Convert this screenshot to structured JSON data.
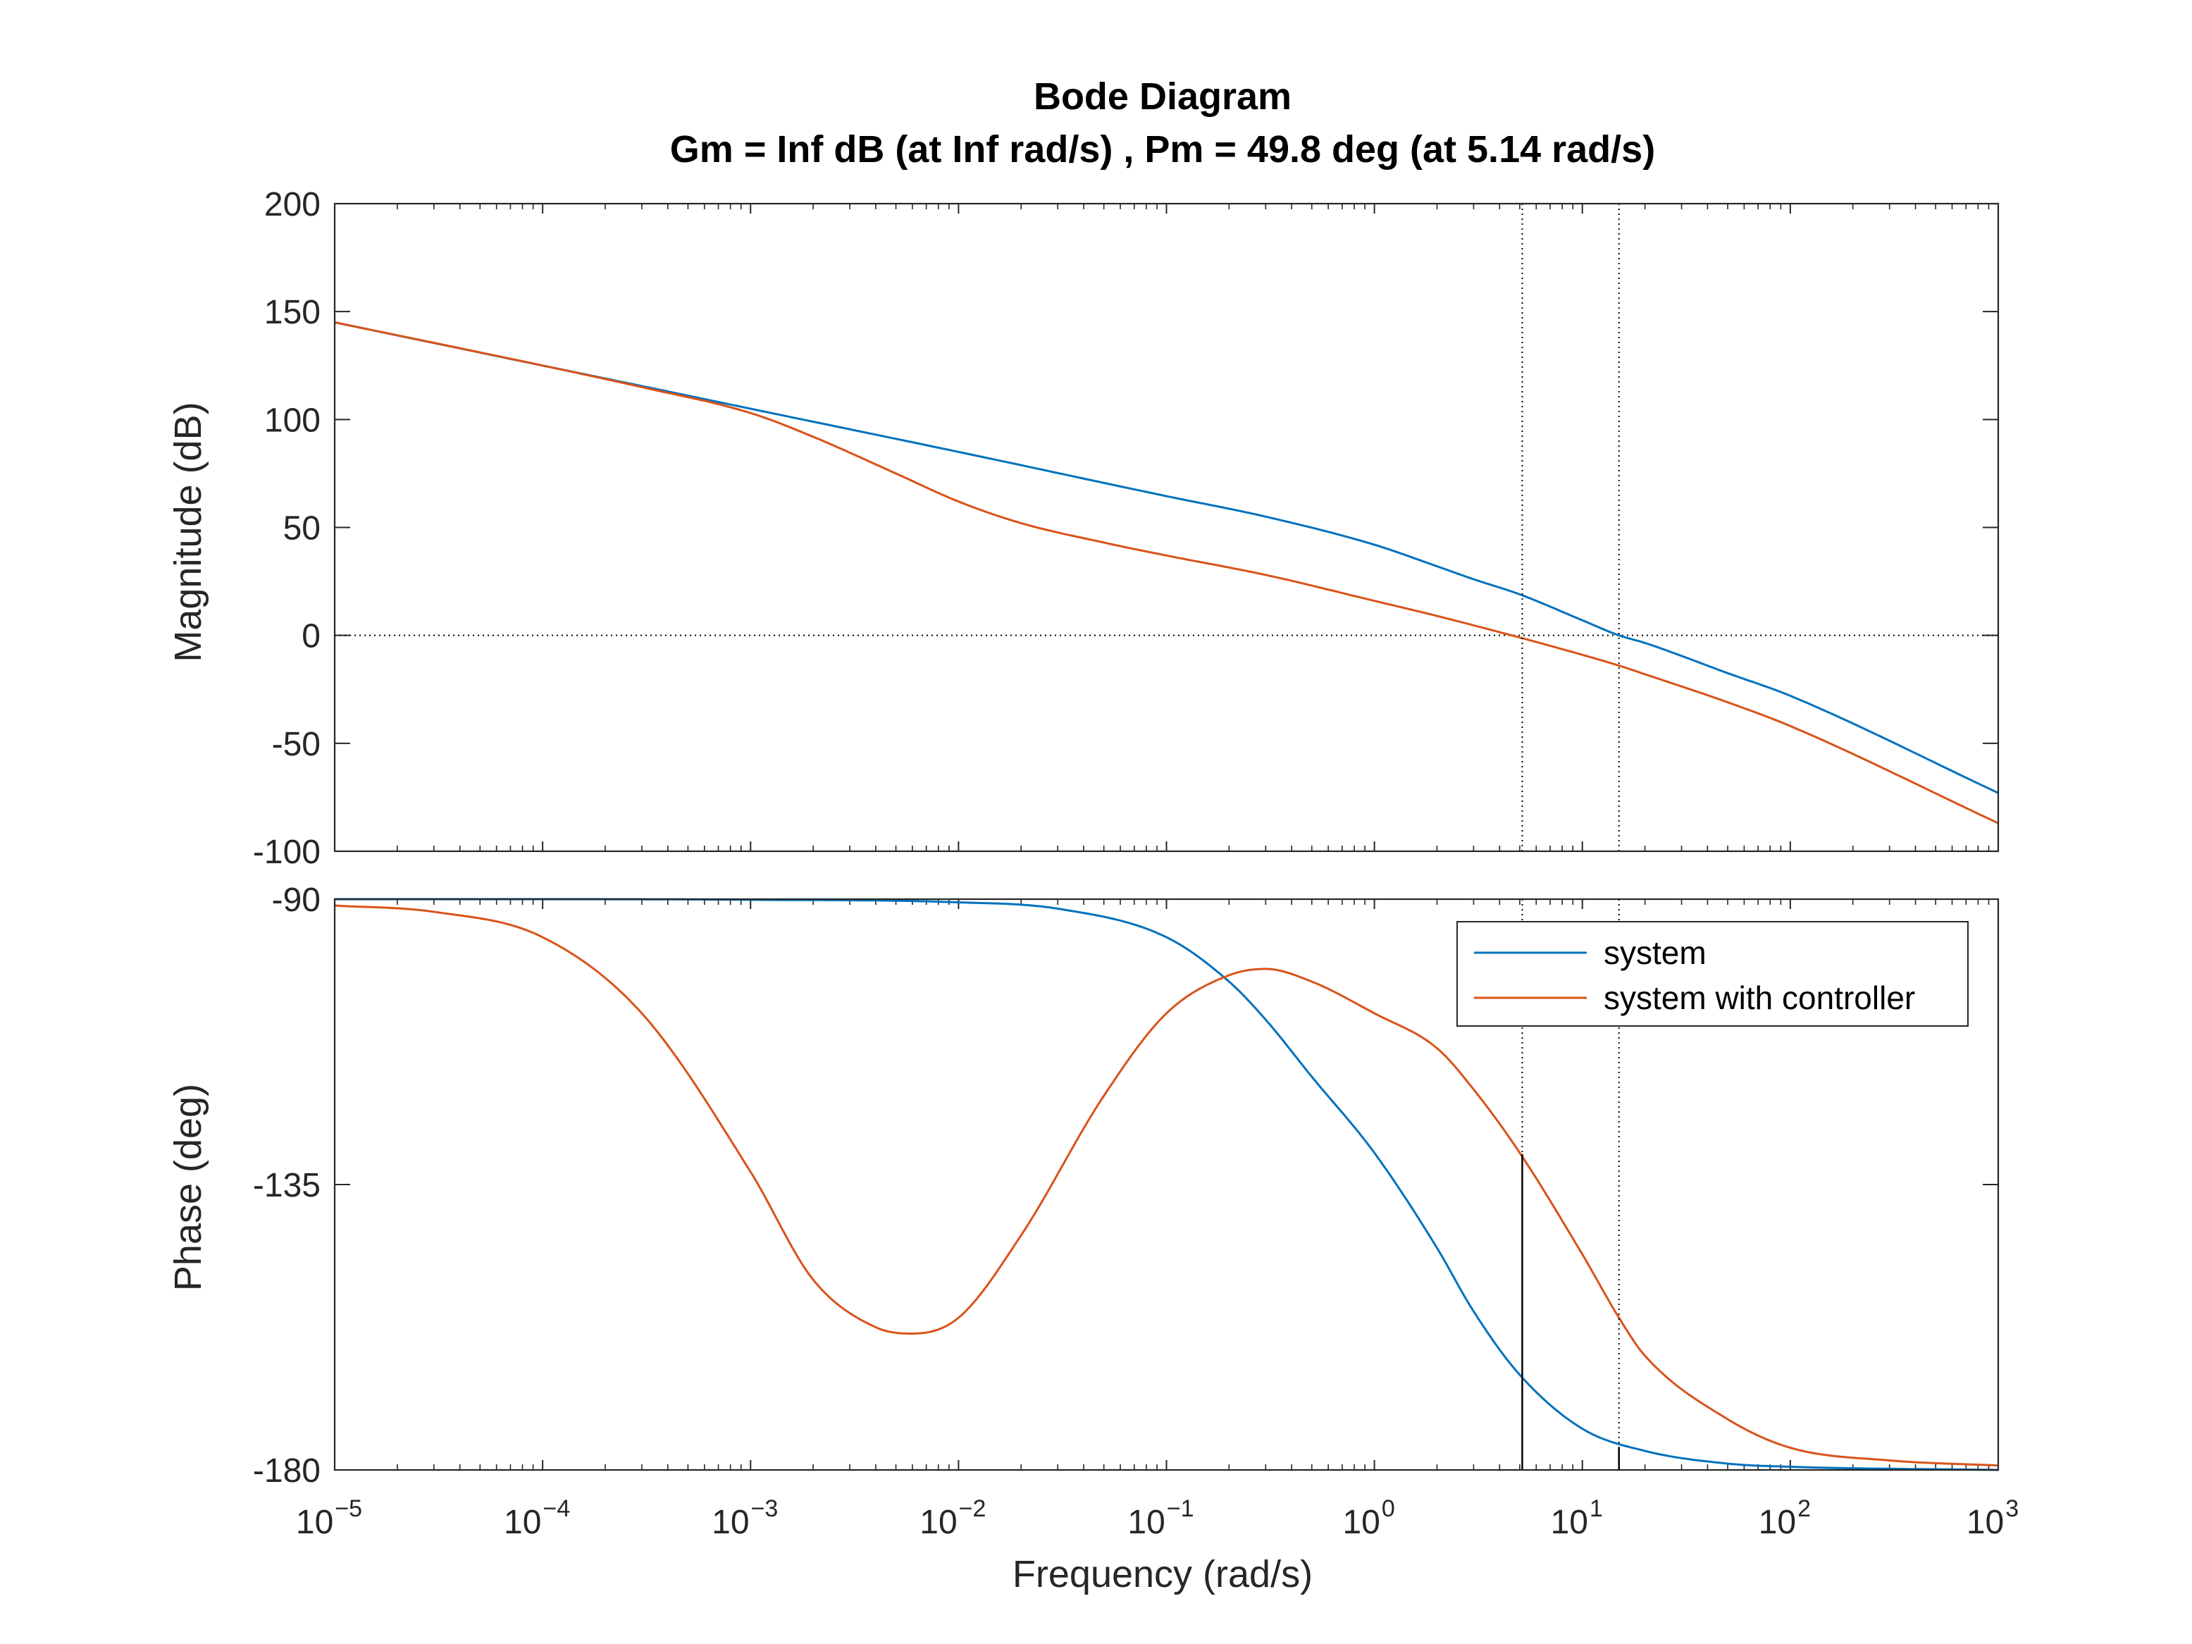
{
  "figure": {
    "title_line1": "Bode Diagram",
    "title_line2": "Gm = Inf dB (at Inf rad/s) ,  Pm = 49.8 deg (at 5.14 rad/s)",
    "xlabel": "Frequency  (rad/s)"
  },
  "chart_data": [
    {
      "type": "line",
      "panel": "magnitude",
      "ylabel": "Magnitude (dB)",
      "xscale": "log",
      "xlim": [
        1e-05,
        1000
      ],
      "ylim": [
        -100,
        200
      ],
      "yticks": [
        200,
        150,
        100,
        50,
        0,
        -50,
        -100
      ],
      "reference_line": 0,
      "crossover_markers": [
        {
          "frequency": 5.14,
          "label": "controlled crossover"
        },
        {
          "frequency": 15,
          "label": "system crossover"
        }
      ],
      "series": [
        {
          "name": "system",
          "color": "#0072BD",
          "x": [
            1e-05,
            0.0001,
            0.0003,
            0.001,
            0.01,
            0.1,
            0.3,
            1,
            2,
            3,
            5,
            10,
            15,
            20,
            50,
            100,
            1000
          ],
          "y": [
            145,
            125,
            115.5,
            105,
            85,
            64.5,
            55,
            42,
            32,
            26,
            19,
            7,
            0,
            -3.5,
            -17.5,
            -28,
            -73
          ]
        },
        {
          "name": "system with controller",
          "color": "#D95319",
          "x": [
            1e-05,
            0.0001,
            0.0003,
            0.001,
            0.002,
            0.005,
            0.01,
            0.02,
            0.05,
            0.1,
            0.3,
            1,
            2,
            5,
            10,
            15,
            20,
            50,
            100,
            1000
          ],
          "y": [
            145,
            125,
            115,
            103,
            92,
            75,
            62,
            52,
            43,
            37,
            28,
            16,
            9,
            -1,
            -9,
            -14,
            -18,
            -31,
            -42,
            -87
          ]
        }
      ]
    },
    {
      "type": "line",
      "panel": "phase",
      "ylabel": "Phase (deg)",
      "xscale": "log",
      "xlim": [
        1e-05,
        1000
      ],
      "ylim": [
        -180,
        -90
      ],
      "yticks": [
        -90,
        -135,
        -180
      ],
      "reference_line": -180,
      "crossover_markers": [
        {
          "frequency": 5.14,
          "phase": -130.2
        },
        {
          "frequency": 15,
          "phase": -176.5
        }
      ],
      "legend": {
        "position": "top-right",
        "entries": [
          "system",
          "system with controller"
        ]
      },
      "series": [
        {
          "name": "system",
          "color": "#0072BD",
          "x": [
            1e-05,
            0.0001,
            0.001,
            0.01,
            0.03,
            0.1,
            0.2,
            0.3,
            0.5,
            1,
            2,
            3,
            5,
            10,
            20,
            50,
            100,
            1000
          ],
          "y": [
            -90,
            -90,
            -90.1,
            -90.5,
            -91.5,
            -96,
            -103,
            -109,
            -118,
            -130,
            -145,
            -155,
            -165,
            -173.5,
            -177,
            -179,
            -179.5,
            -180
          ]
        },
        {
          "name": "system with controller",
          "color": "#D95319",
          "x": [
            1e-05,
            3e-05,
            0.0001,
            0.0003,
            0.001,
            0.002,
            0.004,
            0.006,
            0.01,
            0.02,
            0.05,
            0.1,
            0.2,
            0.3,
            0.5,
            1,
            2,
            3,
            5,
            10,
            15,
            20,
            50,
            100,
            300,
            1000
          ],
          "y": [
            -91,
            -92,
            -96,
            -108,
            -133,
            -150,
            -157.5,
            -158.5,
            -156,
            -143,
            -121,
            -108,
            -102,
            -101,
            -103,
            -108,
            -113.5,
            -120,
            -130,
            -146,
            -156,
            -162,
            -172,
            -176.5,
            -178.5,
            -179.3
          ]
        }
      ]
    }
  ]
}
